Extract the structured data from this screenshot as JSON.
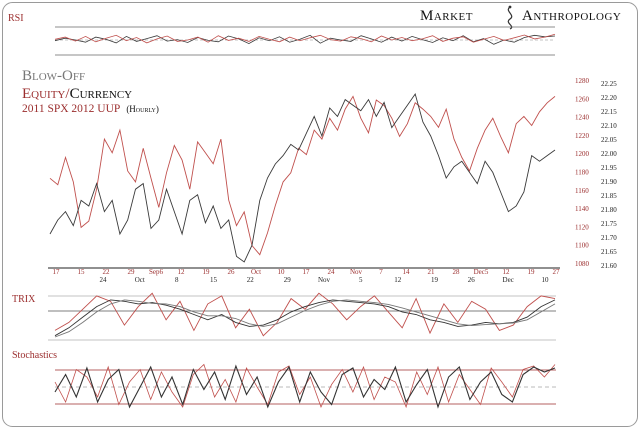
{
  "brand": {
    "name_left": "Market",
    "name_right": "Anthropology"
  },
  "panel_labels": {
    "rsi": "RSI",
    "trix": "TRIX",
    "stochastics": "Stochastics"
  },
  "headline": {
    "line1": "Blow-Off",
    "line2_a": "Equity",
    "line2_sep": "/",
    "line2_b": "Currency",
    "line3_a": "2011 SPX 2012 UUP",
    "line3_b": "(Hourly)"
  },
  "colors": {
    "spx_series": "#c0504d",
    "uup_series": "#3a3a3a",
    "axis_red": "#9b2d2d",
    "axis_dark": "#222222",
    "grid_line": "#555555"
  },
  "chart_data": [
    {
      "type": "line",
      "panel": "main",
      "x_ticks_top": [
        "17",
        "15",
        "22",
        "29",
        "Sep6",
        "12",
        "19",
        "26",
        "Oct",
        "10",
        "17",
        "24",
        "Nov",
        "7",
        "14",
        "21",
        "28",
        "Dec5",
        "12",
        "19",
        "27"
      ],
      "x_ticks_bottom": [
        "24",
        "Oct",
        "8",
        "15",
        "22",
        "29",
        "Nov",
        "5",
        "12",
        "19",
        "26",
        "Dec",
        "10"
      ],
      "spx_axis": {
        "labels": [
          "1280",
          "1260",
          "1240",
          "1220",
          "1200",
          "1180",
          "1160",
          "1140",
          "1120",
          "1100",
          "1080"
        ],
        "range": [
          1080,
          1280
        ]
      },
      "uup_axis": {
        "labels": [
          "22.25",
          "22.20",
          "22.15",
          "22.10",
          "22.05",
          "22.00",
          "21.95",
          "21.90",
          "21.85",
          "21.80",
          "21.75",
          "21.70",
          "21.65",
          "21.60"
        ],
        "range": [
          21.6,
          22.25
        ]
      },
      "series": [
        {
          "values": [
            1172,
            1165,
            1195,
            1168,
            1118,
            1125,
            1160,
            1215,
            1200,
            1225,
            1180,
            1168,
            1205,
            1172,
            1140,
            1178,
            1208,
            1192,
            1160,
            1212,
            1200,
            1188,
            1215,
            1148,
            1120,
            1135,
            1098,
            1088,
            1112,
            1142,
            1168,
            1178,
            1205,
            1198,
            1225,
            1215,
            1238,
            1225,
            1248,
            1262,
            1238,
            1222,
            1258,
            1252,
            1238,
            1218,
            1232,
            1255,
            1248,
            1240,
            1228,
            1248,
            1215,
            1195,
            1180,
            1205,
            1225,
            1238,
            1218,
            1200,
            1232,
            1240,
            1230,
            1245,
            1255,
            1262
          ]
        },
        {
          "values": [
            21.7,
            21.75,
            21.78,
            21.73,
            21.82,
            21.8,
            21.88,
            21.78,
            21.82,
            21.7,
            21.75,
            21.86,
            21.88,
            21.72,
            21.75,
            21.86,
            21.78,
            21.7,
            21.82,
            21.84,
            21.74,
            21.8,
            21.72,
            21.75,
            21.62,
            21.6,
            21.66,
            21.82,
            21.9,
            21.95,
            21.98,
            22.02,
            22.0,
            22.06,
            22.12,
            22.05,
            22.15,
            22.12,
            22.18,
            22.16,
            22.14,
            22.18,
            22.12,
            22.17,
            22.08,
            22.12,
            22.16,
            22.2,
            22.1,
            22.05,
            21.98,
            21.9,
            21.94,
            21.96,
            21.92,
            21.88,
            21.96,
            21.92,
            21.85,
            21.78,
            21.8,
            21.85,
            21.98,
            21.96,
            21.98,
            22.0
          ]
        }
      ]
    },
    {
      "type": "line",
      "panel": "rsi",
      "y_range": [
        0,
        100
      ],
      "series": [
        {
          "values": [
            52,
            58,
            47,
            60,
            45,
            55,
            63,
            48,
            57,
            42,
            53,
            61,
            46,
            50,
            58,
            44,
            62,
            49,
            55,
            46,
            60,
            52,
            45,
            58,
            48,
            56,
            63,
            51,
            47,
            59,
            54,
            45,
            61,
            50,
            57,
            48,
            53,
            62,
            46,
            55,
            59,
            44,
            52,
            60,
            49,
            56,
            64,
            53,
            58,
            66
          ]
        },
        {
          "values": [
            48,
            55,
            50,
            44,
            58,
            52,
            42,
            60,
            46,
            54,
            62,
            47,
            51,
            43,
            57,
            49,
            45,
            61,
            53,
            40,
            56,
            48,
            59,
            44,
            52,
            63,
            41,
            55,
            50,
            46,
            62,
            53,
            44,
            58,
            47,
            60,
            51,
            43,
            56,
            48,
            62,
            45,
            54,
            38,
            50,
            44,
            57,
            63,
            59,
            61
          ]
        }
      ]
    },
    {
      "type": "line",
      "panel": "trix",
      "y_range": [
        -1,
        1
      ],
      "series": [
        {
          "values": [
            -0.6,
            -0.3,
            0.2,
            0.7,
            0.5,
            -0.4,
            0.3,
            0.8,
            -0.2,
            0.5,
            -0.6,
            0.4,
            0.7,
            -0.5,
            0.2,
            -0.8,
            -0.3,
            0.6,
            0.2,
            0.8,
            0.4,
            -0.2,
            0.3,
            0.7,
            0.1,
            -0.5,
            0.6,
            -0.7,
            0.4,
            -0.3,
            0.5,
            0.2,
            -0.6,
            -0.4,
            0.3,
            0.7,
            0.6
          ]
        },
        {
          "values": [
            -0.8,
            -0.5,
            -0.1,
            0.3,
            0.55,
            0.5,
            0.4,
            0.45,
            0.35,
            0.2,
            0.0,
            -0.2,
            0.0,
            -0.3,
            -0.45,
            -0.4,
            -0.2,
            0.1,
            0.3,
            0.45,
            0.55,
            0.5,
            0.45,
            0.4,
            0.3,
            0.1,
            0.0,
            -0.2,
            -0.3,
            -0.45,
            -0.4,
            -0.3,
            -0.35,
            -0.3,
            -0.1,
            0.3,
            0.55
          ]
        },
        {
          "values": [
            -0.85,
            -0.65,
            -0.3,
            0.1,
            0.4,
            0.55,
            0.5,
            0.42,
            0.4,
            0.3,
            0.1,
            -0.05,
            -0.05,
            -0.15,
            -0.35,
            -0.45,
            -0.35,
            -0.1,
            0.15,
            0.35,
            0.5,
            0.55,
            0.5,
            0.45,
            0.38,
            0.25,
            0.1,
            -0.05,
            -0.2,
            -0.35,
            -0.42,
            -0.38,
            -0.35,
            -0.32,
            -0.2,
            0.1,
            0.4
          ]
        }
      ]
    },
    {
      "type": "line",
      "panel": "stochastics",
      "y_range": [
        0,
        100
      ],
      "series": [
        {
          "values": [
            60,
            20,
            85,
            70,
            30,
            90,
            15,
            60,
            85,
            25,
            80,
            40,
            10,
            75,
            95,
            30,
            65,
            20,
            88,
            50,
            15,
            80,
            92,
            35,
            70,
            10,
            55,
            85,
            40,
            90,
            25,
            70,
            60,
            10,
            80,
            35,
            90,
            20,
            75,
            45,
            15,
            88,
            60,
            30,
            85,
            92,
            70,
            95
          ]
        },
        {
          "values": [
            40,
            75,
            30,
            88,
            20,
            65,
            85,
            10,
            50,
            90,
            30,
            70,
            15,
            85,
            45,
            80,
            25,
            92,
            35,
            70,
            10,
            60,
            90,
            20,
            80,
            40,
            15,
            75,
            88,
            30,
            65,
            45,
            90,
            20,
            55,
            85,
            10,
            70,
            90,
            25,
            60,
            80,
            35,
            20,
            75,
            90,
            80,
            88
          ]
        }
      ]
    }
  ]
}
